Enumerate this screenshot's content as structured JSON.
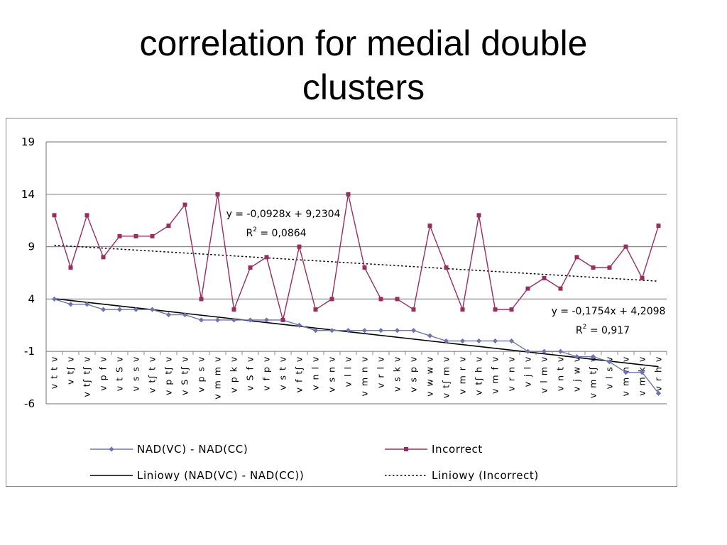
{
  "title_lines": [
    "correlation for medial double",
    "clusters"
  ],
  "chart_data": {
    "type": "line",
    "categories": [
      "v t t v",
      "v tʃ v",
      "v tʃ tʃ v",
      "v p f v",
      "v t S v",
      "v s s v",
      "v tʃ t v",
      "v p tʃ v",
      "v S tʃ v",
      "v p s v",
      "v m m v",
      "v p k v",
      "v S f v",
      "v f p v",
      "v s t v",
      "v f tʃ v",
      "v n l v",
      "v s n v",
      "v l l v",
      "v m n v",
      "v r l v",
      "v s k v",
      "v s p v",
      "v w w v",
      "v tʃ m v",
      "v m r v",
      "v tʃ h v",
      "v m f v",
      "v r n v",
      "v j l v",
      "v l m v",
      "v n t v",
      "v j w v",
      "v m tʃ v",
      "v l s v",
      "v m n v",
      "v m k v",
      "v r h v"
    ],
    "series": [
      {
        "name": "NAD(VC) - NAD(CC)",
        "color": "#6b74b4",
        "marker": "diamond",
        "values": [
          4,
          3.5,
          3.5,
          3,
          3,
          3,
          3,
          2.5,
          2.5,
          2,
          2,
          2,
          2,
          2,
          2,
          1.5,
          1,
          1,
          1,
          1,
          1,
          1,
          1,
          0.5,
          0,
          0,
          0,
          0,
          0,
          -1,
          -1,
          -1,
          -1.5,
          -1.5,
          -2,
          -3,
          -3,
          -5
        ]
      },
      {
        "name": "Incorrect",
        "color": "#9b2d5e",
        "marker": "square",
        "values": [
          12,
          7,
          12,
          8,
          10,
          10,
          10,
          11,
          13,
          4,
          14,
          3,
          7,
          8,
          2,
          9,
          3,
          4,
          14,
          7,
          4,
          4,
          3,
          11,
          7,
          3,
          12,
          3,
          3,
          5,
          6,
          5,
          8,
          7,
          7,
          9,
          6,
          11
        ]
      }
    ],
    "trendlines": [
      {
        "name": "Liniowy (NAD(VC) - NAD(CC))",
        "of": "NAD(VC) - NAD(CC)",
        "slope": -0.1754,
        "intercept": 4.2098,
        "style": "solid",
        "color": "#000000",
        "equation": "y = -0,1754x + 4,2098",
        "r2_label": "R",
        "r2_value": " = 0,917"
      },
      {
        "name": "Liniowy (Incorrect)",
        "of": "Incorrect",
        "slope": -0.0928,
        "intercept": 9.2304,
        "style": "dotted",
        "color": "#000000",
        "equation": "y = -0,0928x + 9,2304",
        "r2_label": "R",
        "r2_value": " = 0,0864"
      }
    ],
    "y_ticks": [
      "19",
      "14",
      "9",
      "4",
      "-1",
      "-6"
    ],
    "y_tick_values": [
      19,
      14,
      9,
      4,
      -1,
      -6
    ],
    "ylim": [
      -6,
      19
    ],
    "grid": true,
    "legend_position": "bottom",
    "xlabel": "",
    "ylabel": "",
    "title": ""
  }
}
